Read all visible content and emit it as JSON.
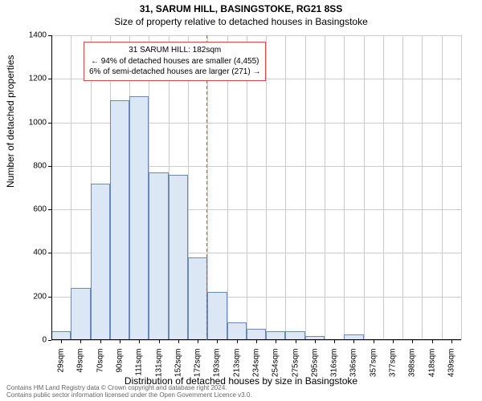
{
  "title_line1": "31, SARUM HILL, BASINGSTOKE, RG21 8SS",
  "title_line2": "Size of property relative to detached houses in Basingstoke",
  "chart": {
    "type": "bar",
    "x_categories": [
      "29sqm",
      "49sqm",
      "70sqm",
      "90sqm",
      "111sqm",
      "131sqm",
      "152sqm",
      "172sqm",
      "193sqm",
      "213sqm",
      "234sqm",
      "254sqm",
      "275sqm",
      "295sqm",
      "316sqm",
      "336sqm",
      "357sqm",
      "377sqm",
      "398sqm",
      "418sqm",
      "439sqm"
    ],
    "values": [
      40,
      240,
      720,
      1100,
      1120,
      770,
      760,
      380,
      220,
      80,
      50,
      40,
      40,
      20,
      5,
      25,
      5,
      0,
      5,
      0,
      5
    ],
    "bar_fill": "#dbe7f5",
    "bar_stroke": "#6a8ab5",
    "bar_width_ratio": 1.0,
    "ylabel": "Number of detached properties",
    "xlabel": "Distribution of detached houses by size in Basingstoke",
    "ylim": [
      0,
      1400
    ],
    "ytick_step": 200,
    "grid_color": "#cccccc",
    "background_color": "#ffffff",
    "label_fontsize": 12,
    "tick_fontsize": 10,
    "reference_line": {
      "x_value_sqm": 182,
      "color": "#d84a4a",
      "dash": "4,3"
    },
    "annotation": {
      "line1": "31 SARUM HILL: 182sqm",
      "line2": "← 94% of detached houses are smaller (4,455)",
      "line3": "6% of semi-detached houses are larger (271) →",
      "border_color": "#d84a4a",
      "text_color": "#000000",
      "bg": "#ffffff"
    }
  },
  "footer": {
    "line1": "Contains HM Land Registry data © Crown copyright and database right 2024.",
    "line2": "Contains public sector information licensed under the Open Government Licence v3.0.",
    "color": "#666666"
  }
}
